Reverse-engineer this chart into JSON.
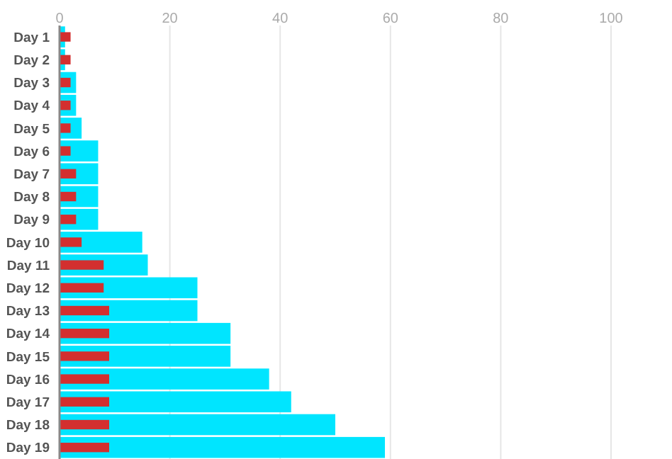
{
  "chart_data": {
    "type": "bar",
    "orientation": "horizontal",
    "categories": [
      "Day 1",
      "Day 2",
      "Day 3",
      "Day 4",
      "Day 5",
      "Day 6",
      "Day 7",
      "Day 8",
      "Day 9",
      "Day 10",
      "Day 11",
      "Day 12",
      "Day 13",
      "Day 14",
      "Day 15",
      "Day 16",
      "Day 17",
      "Day 18",
      "Day 19"
    ],
    "series": [
      {
        "color": "#00e5ff",
        "values": [
          1,
          1,
          3,
          3,
          4,
          7,
          7,
          7,
          7,
          15,
          16,
          25,
          25,
          31,
          31,
          38,
          42,
          50,
          59
        ]
      },
      {
        "color": "#d32f2f",
        "values": [
          2,
          2,
          2,
          2,
          2,
          2,
          3,
          3,
          3,
          4,
          8,
          8,
          9,
          9,
          9,
          9,
          9,
          9,
          9
        ]
      }
    ],
    "xlim": [
      0,
      100
    ],
    "xticks": [
      0,
      20,
      40,
      60,
      80,
      100
    ],
    "grid": "x"
  }
}
